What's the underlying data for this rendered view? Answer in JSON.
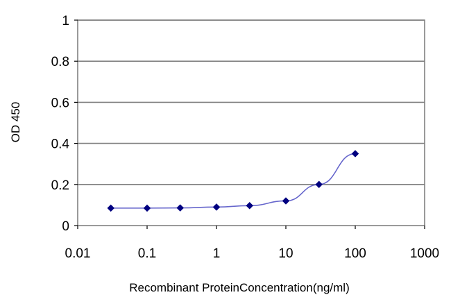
{
  "chart_data": {
    "type": "line",
    "title": "",
    "xlabel": "Recombinant ProteinConcentration(ng/ml)",
    "ylabel": "OD 450",
    "x_scale": "log",
    "xlim": [
      0.01,
      1000
    ],
    "ylim": [
      0,
      1
    ],
    "x_ticks": [
      "0.01",
      "0.1",
      "1",
      "10",
      "100",
      "1000"
    ],
    "y_ticks": [
      "0",
      "0.2",
      "0.4",
      "0.6",
      "0.8",
      "1"
    ],
    "grid": "horizontal",
    "legend": "none",
    "plot_background": "#ffffff",
    "grid_color": "#808080",
    "line_color": "#6666cc",
    "marker_color": "#000080",
    "marker": "diamond",
    "series": [
      {
        "x": [
          0.03,
          0.1,
          0.3,
          1,
          3,
          10,
          30,
          100
        ],
        "y": [
          0.085,
          0.085,
          0.086,
          0.09,
          0.097,
          0.12,
          0.2,
          0.35
        ]
      }
    ]
  }
}
